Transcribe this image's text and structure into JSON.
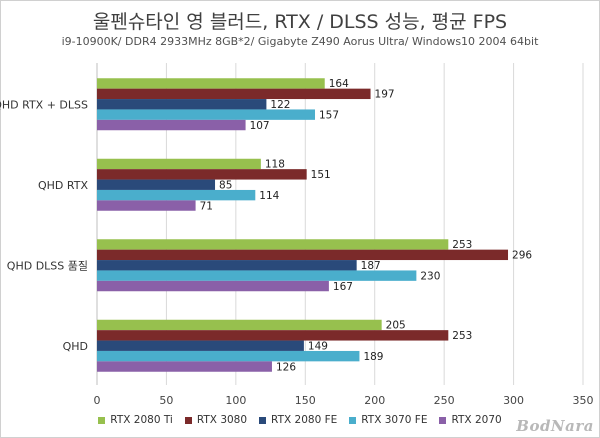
{
  "chart_data": {
    "type": "bar",
    "orientation": "horizontal",
    "title": "울펜슈타인 영 블러드, RTX / DLSS 성능, 평균 FPS",
    "subtitle": "i9-10900K/ DDR4 2933MHz 8GB*2/ Gigabyte Z490 Aorus Ultra/ Windows10 2004 64bit",
    "categories": [
      "QHD RTX + DLSS",
      "QHD RTX",
      "QHD DLSS 품질",
      "QHD"
    ],
    "series": [
      {
        "name": "RTX 2080 Ti",
        "color": "#97c04e",
        "values": [
          164,
          118,
          253,
          205
        ]
      },
      {
        "name": "RTX 3080",
        "color": "#7b2a2a",
        "values": [
          197,
          151,
          296,
          253
        ]
      },
      {
        "name": "RTX 2080 FE",
        "color": "#2a4a7a",
        "values": [
          122,
          85,
          187,
          149
        ]
      },
      {
        "name": "RTX 3070 FE",
        "color": "#4aaecc",
        "values": [
          157,
          114,
          230,
          189
        ]
      },
      {
        "name": "RTX 2070",
        "color": "#8a60a8",
        "values": [
          107,
          71,
          167,
          126
        ]
      }
    ],
    "xlim": [
      0,
      350
    ],
    "xticks": [
      0,
      50,
      100,
      150,
      200,
      250,
      300,
      350
    ],
    "xlabel": "",
    "ylabel": "",
    "grid": "vertical",
    "legend": "bottom"
  },
  "watermark": "BodNara"
}
